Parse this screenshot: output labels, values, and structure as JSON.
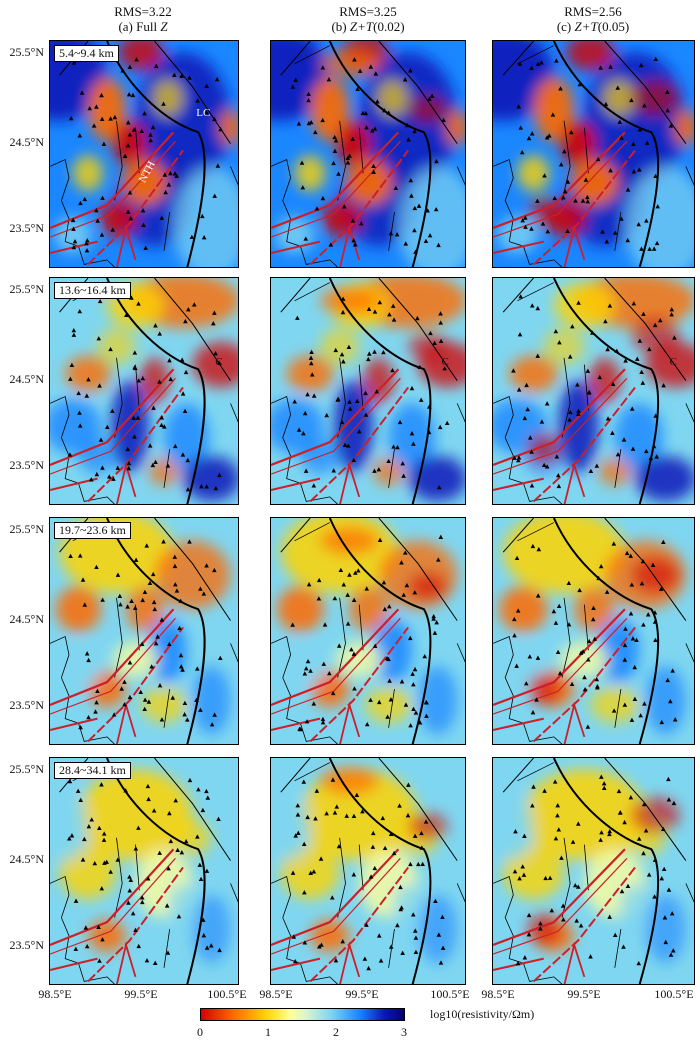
{
  "columns": [
    {
      "rms": "RMS=3.22",
      "sub_prefix": "(a) Full ",
      "sub_em": "Z",
      "sub_suffix": ""
    },
    {
      "rms": "RMS=3.25",
      "sub_prefix": "(b) ",
      "sub_em": "Z+T",
      "sub_suffix": "(0.02)"
    },
    {
      "rms": "RMS=2.56",
      "sub_prefix": "(c) ",
      "sub_em": "Z+T",
      "sub_suffix": "(0.05)"
    }
  ],
  "rows": [
    {
      "depth": "5.4~9.4 km"
    },
    {
      "depth": "13.6~16.4 km"
    },
    {
      "depth": "19.7~23.6 km"
    },
    {
      "depth": "28.4~34.1 km"
    }
  ],
  "features": {
    "lc": "LC",
    "nth": "NTH",
    "c": "C"
  },
  "y_ticks": [
    "25.5°N",
    "24.5°N",
    "23.5°N"
  ],
  "x_ticks": [
    "98.5°E",
    "99.5°E",
    "100.5°E"
  ],
  "colorbar": {
    "ticks": [
      "0",
      "1",
      "2",
      "3"
    ],
    "label": "log10(resistivity/Ωm)",
    "stops": [
      "#d40000",
      "#ff6a00",
      "#ffd400",
      "#ffff9a",
      "#d8f4d0",
      "#7fd6f0",
      "#1a86ff",
      "#0a1ab8",
      "#03016e"
    ]
  },
  "colors": {
    "fault_main": "#000000",
    "fault_red": "#cc1f2a",
    "station": "#000000"
  }
}
